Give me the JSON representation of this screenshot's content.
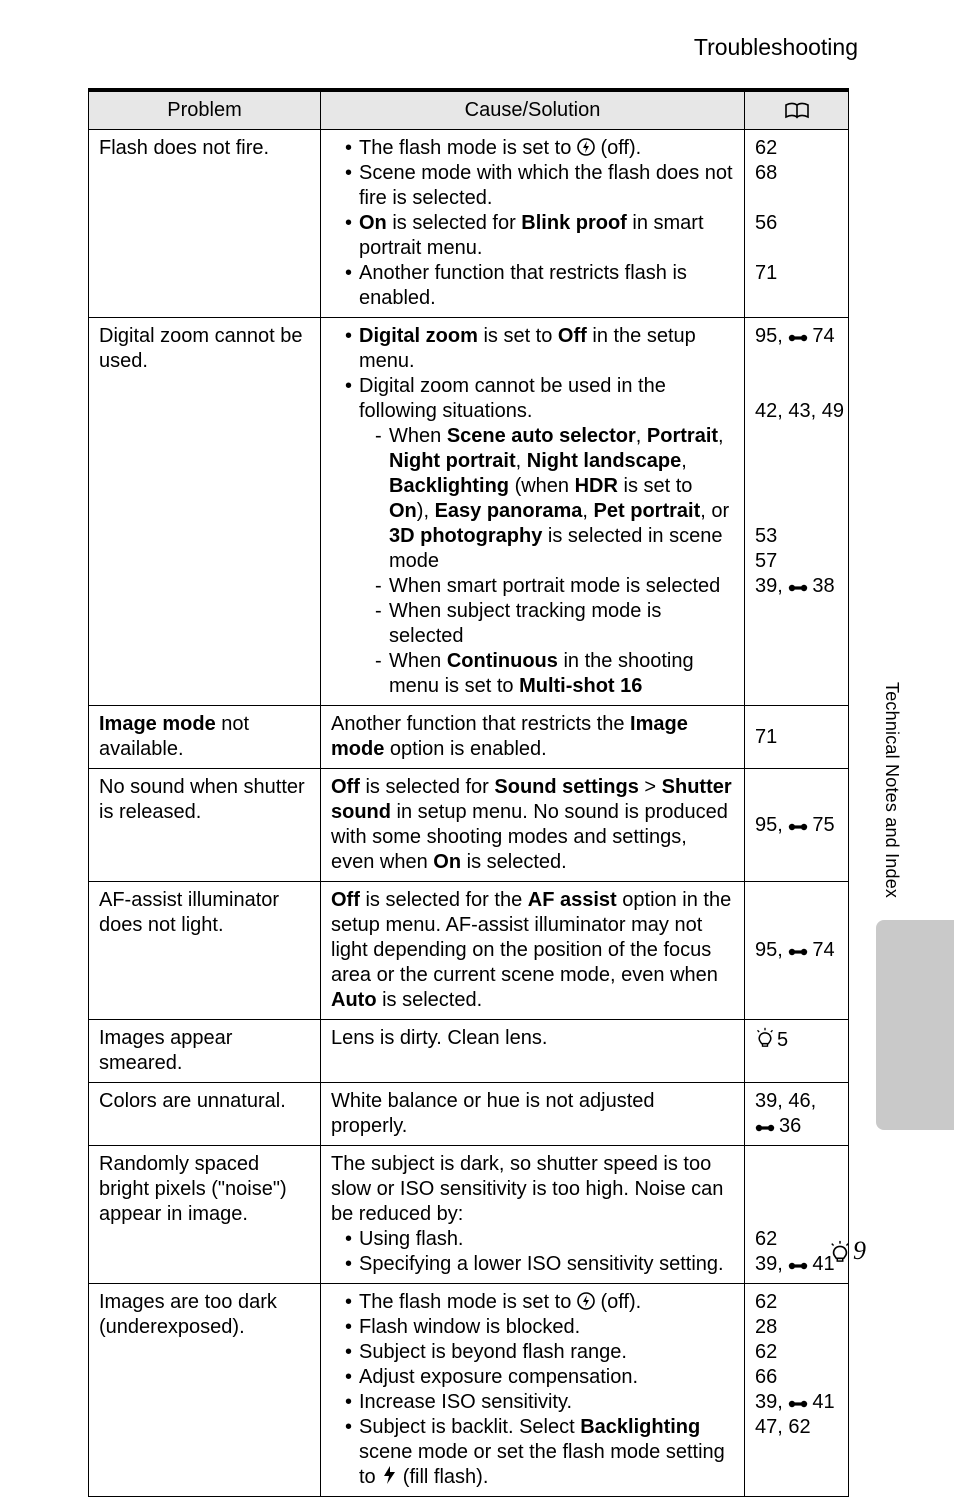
{
  "header": {
    "title": "Troubleshooting"
  },
  "table": {
    "head": {
      "problem": "Problem",
      "cause": "Cause/Solution"
    },
    "rows": [
      {
        "problem": "Flash does not fire.",
        "cause_bullets": [
          {
            "pre": "The flash mode is set to ",
            "icon": "flash-off",
            "post": " (off)."
          },
          {
            "text": "Scene mode with which the flash does not fire is selected."
          },
          {
            "parts": [
              [
                "t",
                "",
                "On"
              ],
              [
                "t",
                " is selected for ",
                ""
              ],
              [
                "t",
                "",
                "Blink proof"
              ],
              [
                "t",
                " in smart portrait menu.",
                ""
              ]
            ]
          },
          {
            "text": "Another function that restricts flash is enabled."
          }
        ],
        "refs": [
          {
            "t": "62"
          },
          {
            "t": "68"
          },
          {
            "blank": true
          },
          {
            "t": "56"
          },
          {
            "blank": true
          },
          {
            "t": "71"
          }
        ]
      },
      {
        "problem": "Digital zoom cannot be used.",
        "cause_bullets": [
          {
            "parts": [
              [
                "t",
                "",
                "Digital zoom"
              ],
              [
                "t",
                " is set to ",
                ""
              ],
              [
                "t",
                "",
                "Off"
              ],
              [
                "t",
                " in the setup menu.",
                ""
              ]
            ]
          },
          {
            "text": "Digital zoom cannot be used in the following situations.",
            "sub": [
              {
                "parts": [
                  [
                    "t",
                    "When ",
                    ""
                  ],
                  [
                    "t",
                    "",
                    "Scene auto selector"
                  ],
                  [
                    "t",
                    ", ",
                    ""
                  ],
                  [
                    "t",
                    "",
                    "Portrait"
                  ],
                  [
                    "t",
                    ", ",
                    ""
                  ],
                  [
                    "t",
                    "",
                    "Night portrait"
                  ],
                  [
                    "t",
                    ", ",
                    ""
                  ],
                  [
                    "t",
                    "",
                    "Night landscape"
                  ],
                  [
                    "t",
                    ", ",
                    ""
                  ],
                  [
                    "t",
                    "",
                    "Backlighting"
                  ],
                  [
                    "t",
                    " (when ",
                    ""
                  ],
                  [
                    "t",
                    "",
                    "HDR"
                  ],
                  [
                    "t",
                    " is set to ",
                    ""
                  ],
                  [
                    "t",
                    "",
                    "On"
                  ],
                  [
                    "t",
                    "), ",
                    ""
                  ],
                  [
                    "t",
                    "",
                    "Easy panorama"
                  ],
                  [
                    "t",
                    ", ",
                    ""
                  ],
                  [
                    "t",
                    "",
                    "Pet portrait"
                  ],
                  [
                    "t",
                    ", or ",
                    ""
                  ],
                  [
                    "t",
                    "",
                    "3D photography"
                  ],
                  [
                    "t",
                    " is selected in scene mode",
                    ""
                  ]
                ]
              },
              {
                "text": "When smart portrait mode is selected"
              },
              {
                "text": "When subject tracking mode is selected"
              },
              {
                "parts": [
                  [
                    "t",
                    "When ",
                    ""
                  ],
                  [
                    "t",
                    "",
                    "Continuous"
                  ],
                  [
                    "t",
                    " in the shooting menu is set to ",
                    ""
                  ],
                  [
                    "t",
                    "",
                    "Multi-shot 16"
                  ],
                  [
                    "t",
                    "",
                    ""
                  ]
                ]
              }
            ]
          }
        ],
        "refs": [
          {
            "t": "95, ",
            "icon": "ref",
            "t2": "74"
          },
          {
            "blank": true
          },
          {
            "blank": true
          },
          {
            "t": "42, 43, 49"
          },
          {
            "blank": true
          },
          {
            "blank": true
          },
          {
            "blank": true
          },
          {
            "blank": true
          },
          {
            "t": "53"
          },
          {
            "t": "57"
          },
          {
            "t": "39, ",
            "icon": "ref",
            "t2": "38"
          }
        ]
      },
      {
        "problem_parts": [
          [
            "t",
            "",
            "Image mode"
          ],
          [
            "t",
            " not available.",
            ""
          ]
        ],
        "cause_parts": [
          [
            "t",
            "Another function that restricts the ",
            ""
          ],
          [
            "t",
            "",
            "Image mode"
          ],
          [
            "t",
            " option is enabled.",
            ""
          ]
        ],
        "refs": [
          {
            "t": "71"
          }
        ],
        "refs_valign": "middle"
      },
      {
        "problem": "No sound when shutter is released.",
        "cause_parts": [
          [
            "t",
            "",
            "Off"
          ],
          [
            "t",
            " is selected for ",
            ""
          ],
          [
            "t",
            "",
            "Sound settings"
          ],
          [
            "t",
            " > ",
            ""
          ],
          [
            "t",
            "",
            "Shutter sound"
          ],
          [
            "t",
            " in setup menu. No sound is produced with some shooting modes and settings, even when ",
            ""
          ],
          [
            "t",
            "",
            "On"
          ],
          [
            "t",
            " is selected.",
            ""
          ]
        ],
        "refs": [
          {
            "t": "95, ",
            "icon": "ref",
            "t2": "75"
          }
        ],
        "refs_valign": "middle"
      },
      {
        "problem": "AF-assist illuminator does not light.",
        "cause_parts": [
          [
            "t",
            "",
            "Off"
          ],
          [
            "t",
            " is selected for the ",
            ""
          ],
          [
            "t",
            "",
            "AF assist"
          ],
          [
            "t",
            " option in the setup menu. AF-assist illuminator may not light depending on the position of the focus area or the current scene mode, even when ",
            ""
          ],
          [
            "t",
            "",
            "Auto"
          ],
          [
            "t",
            " is selected.",
            ""
          ]
        ],
        "refs": [
          {
            "t": "95, ",
            "icon": "ref",
            "t2": "74"
          }
        ],
        "refs_valign": "middle"
      },
      {
        "problem": "Images appear smeared.",
        "cause": "Lens is dirty. Clean lens.",
        "refs": [
          {
            "icon": "lamp",
            "t2": "5"
          }
        ]
      },
      {
        "problem": "Colors are unnatural.",
        "cause": "White balance or hue is not adjusted properly.",
        "refs": [
          {
            "t": "39, 46,"
          },
          {
            "icon": "ref",
            "t2": "36"
          }
        ],
        "refs_valign": "middle"
      },
      {
        "problem": "Randomly spaced bright pixels (\"noise\") appear in image.",
        "cause_intro": "The subject is dark, so shutter speed is too slow or ISO sensitivity is too high. Noise can be reduced by:",
        "cause_bullets": [
          {
            "text": "Using flash."
          },
          {
            "text": "Specifying a lower ISO sensitivity setting."
          }
        ],
        "refs": [
          {
            "blank": true
          },
          {
            "blank": true
          },
          {
            "blank": true
          },
          {
            "t": "62"
          },
          {
            "t": "39, ",
            "icon": "ref",
            "t2": "41"
          }
        ]
      },
      {
        "problem": "Images are too dark (underexposed).",
        "cause_bullets": [
          {
            "pre": "The flash mode is set to ",
            "icon": "flash-off",
            "post": " (off)."
          },
          {
            "text": "Flash window is blocked."
          },
          {
            "text": "Subject is beyond flash range."
          },
          {
            "text": "Adjust exposure compensation."
          },
          {
            "text": "Increase ISO sensitivity."
          },
          {
            "parts": [
              [
                "t",
                "Subject is backlit. Select ",
                ""
              ],
              [
                "t",
                "",
                "Backlighting"
              ],
              [
                "t",
                " scene mode or set the flash mode setting to ",
                ""
              ],
              [
                "i",
                "fill-flash",
                ""
              ],
              [
                "t",
                " (fill flash).",
                ""
              ]
            ]
          }
        ],
        "refs": [
          {
            "t": "62"
          },
          {
            "t": "28"
          },
          {
            "t": "62"
          },
          {
            "t": "66"
          },
          {
            "t": "39, ",
            "icon": "ref",
            "t2": "41"
          },
          {
            "t": "47, 62"
          }
        ]
      }
    ]
  },
  "side": {
    "label": "Technical Notes and Index"
  },
  "footer": {
    "page": "9"
  },
  "icons": {
    "book": "book-icon",
    "ref": "ref-icon",
    "lamp": "lamp-icon",
    "flash-off": "flash-off-icon",
    "fill-flash": "fill-flash-icon"
  }
}
